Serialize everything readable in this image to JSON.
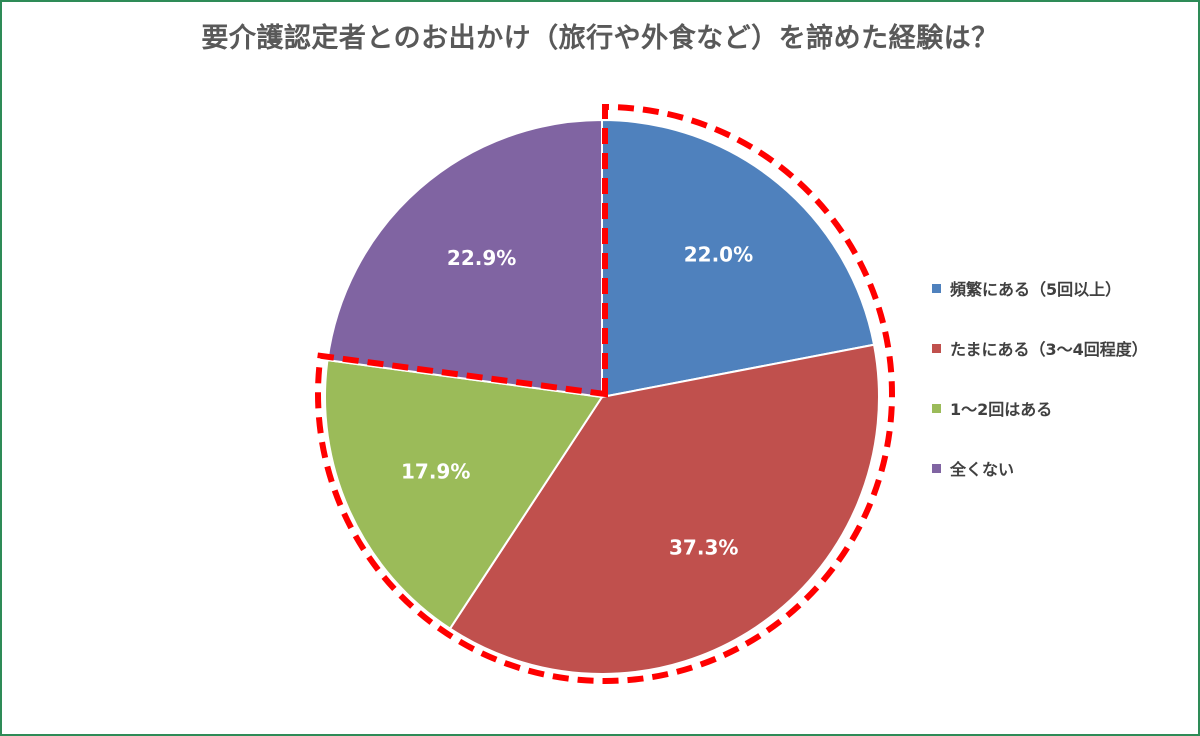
{
  "title": "要介護認定者とのお出かけ（旅行や外食など）を諦めた経験は？",
  "chart_data": {
    "type": "pie",
    "title": "要介護認定者とのお出かけ（旅行や外食など）を諦めた経験は？",
    "start_angle": "12 o'clock",
    "direction": "clockwise",
    "legend_position": "right",
    "slices": [
      {
        "label": "頻繁にある（5回以上）",
        "value": 22.0,
        "display": "22.0%",
        "color": "#4f81bd"
      },
      {
        "label": "たまにある（3〜4回程度）",
        "value": 37.3,
        "display": "37.3%",
        "color": "#c0504d"
      },
      {
        "label": "1〜2回はある",
        "value": 17.9,
        "display": "17.9%",
        "color": "#9bbb59"
      },
      {
        "label": "全くない",
        "value": 22.9,
        "display": "22.9%",
        "color": "#8064a2"
      }
    ],
    "highlight": {
      "description": "red dashed outline around first three slices",
      "slice_indices": [
        0,
        1,
        2
      ],
      "color": "#ff0000"
    }
  }
}
